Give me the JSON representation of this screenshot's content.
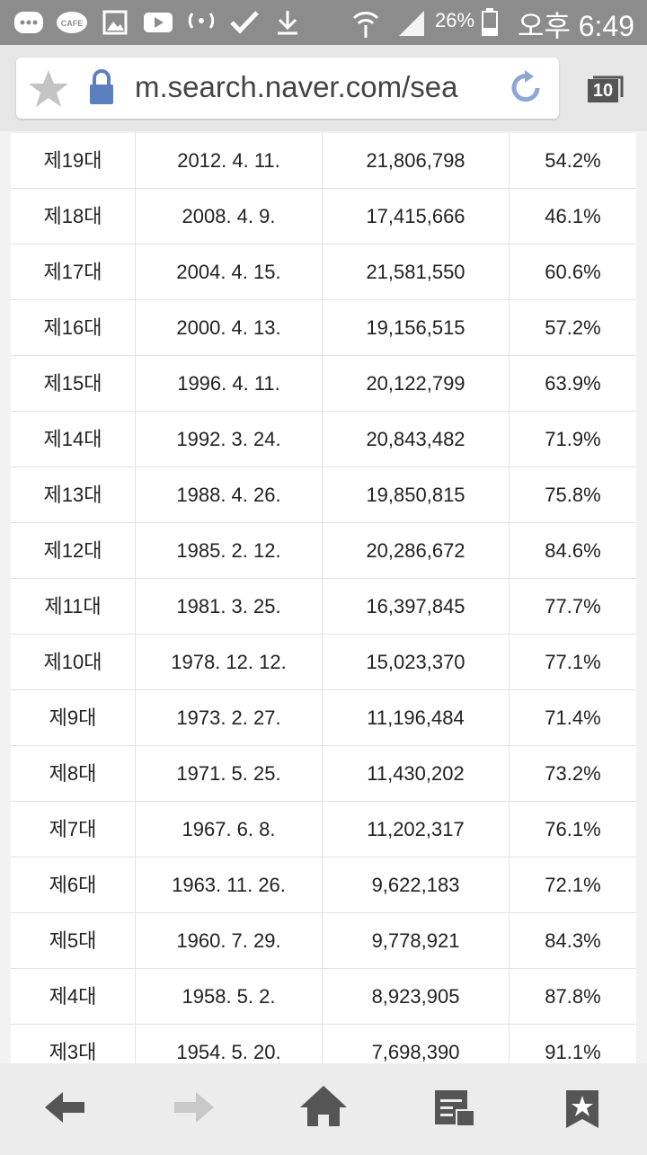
{
  "status_bar": {
    "icon_label": "CAFE",
    "battery": "26%",
    "time": "오후 6:49"
  },
  "browser": {
    "url": "m.search.naver.com/sea",
    "tab_count": "10"
  },
  "table": {
    "rows": [
      [
        "제19대",
        "2012. 4. 11.",
        "21,806,798",
        "54.2%"
      ],
      [
        "제18대",
        "2008. 4. 9.",
        "17,415,666",
        "46.1%"
      ],
      [
        "제17대",
        "2004. 4. 15.",
        "21,581,550",
        "60.6%"
      ],
      [
        "제16대",
        "2000. 4. 13.",
        "19,156,515",
        "57.2%"
      ],
      [
        "제15대",
        "1996. 4. 11.",
        "20,122,799",
        "63.9%"
      ],
      [
        "제14대",
        "1992. 3. 24.",
        "20,843,482",
        "71.9%"
      ],
      [
        "제13대",
        "1988. 4. 26.",
        "19,850,815",
        "75.8%"
      ],
      [
        "제12대",
        "1985. 2. 12.",
        "20,286,672",
        "84.6%"
      ],
      [
        "제11대",
        "1981. 3. 25.",
        "16,397,845",
        "77.7%"
      ],
      [
        "제10대",
        "1978. 12. 12.",
        "15,023,370",
        "77.1%"
      ],
      [
        "제9대",
        "1973. 2. 27.",
        "11,196,484",
        "71.4%"
      ],
      [
        "제8대",
        "1971. 5. 25.",
        "11,430,202",
        "73.2%"
      ],
      [
        "제7대",
        "1967. 6. 8.",
        "11,202,317",
        "76.1%"
      ],
      [
        "제6대",
        "1963. 11. 26.",
        "9,622,183",
        "72.1%"
      ],
      [
        "제5대",
        "1960. 7. 29.",
        "9,778,921",
        "84.3%"
      ],
      [
        "제4대",
        "1958. 5. 2.",
        "8,923,905",
        "87.8%"
      ],
      [
        "제3대",
        "1954. 5. 20.",
        "7,698,390",
        "91.1%"
      ]
    ]
  }
}
